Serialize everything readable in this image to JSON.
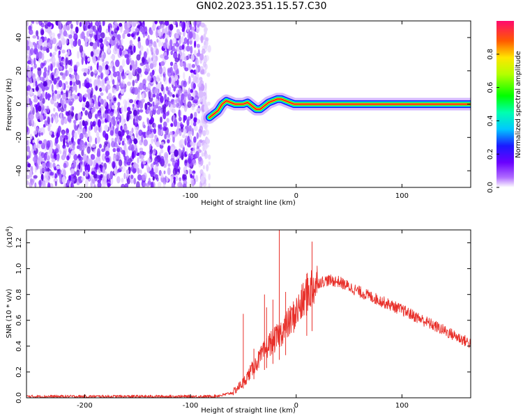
{
  "figure": {
    "title": "GN02.2023.351.15.57.C30"
  },
  "chart_data": [
    {
      "type": "heatmap",
      "title": "",
      "xlabel": "Height of straight line (km)",
      "ylabel": "Frequency (Hz)",
      "xlim": [
        -255,
        165
      ],
      "ylim": [
        -50,
        50
      ],
      "x_ticks": [
        -200,
        -100,
        0,
        100
      ],
      "x_tick_labels": [
        "-200",
        "-100",
        "0",
        "100"
      ],
      "y_ticks": [
        -40,
        -20,
        0,
        20,
        40
      ],
      "y_tick_labels": [
        "-40",
        "-20",
        "0",
        "20",
        "40"
      ],
      "noise_region_x": [
        -255,
        -82
      ],
      "signal_trace": {
        "x": [
          -82,
          -78,
          -74,
          -70,
          -66,
          -62,
          -58,
          -54,
          -50,
          -46,
          -42,
          -38,
          -34,
          -30,
          -26,
          -22,
          -18,
          -14,
          -10,
          -6,
          -2,
          0,
          20,
          40,
          60,
          80,
          100,
          120,
          140,
          165
        ],
        "frequency": [
          -8,
          -6,
          -4,
          0,
          2,
          1,
          0,
          0,
          0,
          1,
          -1,
          -3,
          -3,
          -1,
          1,
          2,
          3,
          3,
          2,
          1,
          0,
          0,
          0,
          0,
          0,
          0,
          0,
          0,
          0,
          0
        ]
      },
      "colorbar": {
        "label": "Normalized spectral amplitude",
        "ticks": [
          0.0,
          0.2,
          0.4,
          0.6,
          0.8
        ],
        "tick_labels": [
          "0.0",
          "0.2",
          "0.4",
          "0.6",
          "0.8"
        ],
        "range": [
          0,
          1
        ]
      },
      "grid": false
    },
    {
      "type": "line",
      "title": "",
      "xlabel": "Height of straight line (km)",
      "ylabel": "SNR (10 * v/v)",
      "y_multiplier": "(x10",
      "y_multiplier_exp": "4",
      "y_multiplier_close": ")",
      "xlim": [
        -255,
        165
      ],
      "ylim": [
        0,
        1.3
      ],
      "x_ticks": [
        -200,
        -100,
        0,
        100
      ],
      "x_tick_labels": [
        "-200",
        "-100",
        "0",
        "100"
      ],
      "y_ticks": [
        0.0,
        0.2,
        0.4,
        0.6,
        0.8,
        1.0,
        1.2
      ],
      "y_tick_labels": [
        "0.0",
        "0.2",
        "0.4",
        "0.6",
        "0.8",
        "1.0",
        "1.2"
      ],
      "series": [
        {
          "color": "#e8302a",
          "x": [
            -255,
            -200,
            -150,
            -100,
            -80,
            -70,
            -60,
            -55,
            -50,
            -45,
            -40,
            -35,
            -30,
            -25,
            -20,
            -15,
            -10,
            -5,
            0,
            5,
            10,
            15,
            20,
            25,
            30,
            40,
            50,
            60,
            80,
            100,
            120,
            140,
            165
          ],
          "y": [
            0.01,
            0.01,
            0.01,
            0.01,
            0.01,
            0.02,
            0.04,
            0.08,
            0.12,
            0.18,
            0.24,
            0.3,
            0.36,
            0.42,
            0.45,
            0.5,
            0.55,
            0.6,
            0.66,
            0.72,
            0.8,
            0.86,
            0.89,
            0.9,
            0.91,
            0.9,
            0.86,
            0.82,
            0.75,
            0.68,
            0.6,
            0.52,
            0.42
          ]
        }
      ],
      "spikes": [
        {
          "x": -50,
          "y": 0.65
        },
        {
          "x": -40,
          "y": 0.38
        },
        {
          "x": -30,
          "y": 0.8
        },
        {
          "x": -28,
          "y": 0.7
        },
        {
          "x": -22,
          "y": 0.76
        },
        {
          "x": -16,
          "y": 1.3
        },
        {
          "x": -10,
          "y": 0.82
        },
        {
          "x": 10,
          "y": 0.96
        },
        {
          "x": 15,
          "y": 1.21
        }
      ],
      "grid": false
    }
  ]
}
